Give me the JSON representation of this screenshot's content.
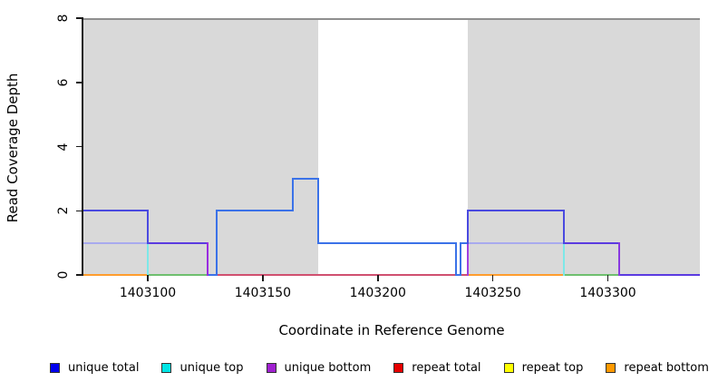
{
  "figure": {
    "xlabel": "Coordinate in Reference Genome",
    "ylabel": "Read Coverage Depth"
  },
  "chart_data": {
    "type": "line",
    "subtype": "step-coverage",
    "title": "",
    "xlabel": "Coordinate in Reference Genome",
    "ylabel": "Read Coverage Depth",
    "xlim": [
      1403072,
      1403340
    ],
    "ylim": [
      0,
      8
    ],
    "grid": false,
    "xticks": [
      1403100,
      1403150,
      1403200,
      1403250,
      1403300
    ],
    "xticklabels": [
      "1403100",
      "1403150",
      "1403200",
      "1403250",
      "1403300"
    ],
    "yticks": [
      0,
      2,
      4,
      6,
      8
    ],
    "yticklabels": [
      "0",
      "2",
      "4",
      "6",
      "8"
    ],
    "shade_color": "#d9d9d9",
    "shaded_regions": [
      {
        "x1": 1403072,
        "x2": 1403174
      },
      {
        "x1": 1403239,
        "x2": 1403340
      }
    ],
    "boundary_line_y": 8,
    "boundary_line_color": "#8f8f8f",
    "series": [
      {
        "name": "unique total",
        "color": "#0000ee",
        "steps": [
          [
            1403072,
            2
          ],
          [
            1403100,
            1
          ],
          [
            1403126,
            0
          ],
          [
            1403130,
            2
          ],
          [
            1403163,
            3
          ],
          [
            1403174,
            1
          ],
          [
            1403234,
            0
          ],
          [
            1403236,
            1
          ],
          [
            1403239,
            2
          ],
          [
            1403281,
            1
          ],
          [
            1403305,
            0
          ],
          [
            1403340,
            0
          ]
        ]
      },
      {
        "name": "unique top",
        "color": "#00e5e5",
        "steps": [
          [
            1403072,
            1
          ],
          [
            1403100,
            0
          ],
          [
            1403130,
            2
          ],
          [
            1403163,
            3
          ],
          [
            1403174,
            1
          ],
          [
            1403234,
            0
          ],
          [
            1403236,
            1
          ],
          [
            1403281,
            0
          ],
          [
            1403340,
            0
          ]
        ]
      },
      {
        "name": "unique bottom",
        "color": "#a020d0",
        "steps": [
          [
            1403072,
            1
          ],
          [
            1403126,
            0
          ],
          [
            1403239,
            1
          ],
          [
            1403305,
            0
          ],
          [
            1403340,
            0
          ]
        ]
      },
      {
        "name": "repeat total",
        "color": "#e60000",
        "steps": [
          [
            1403072,
            0
          ],
          [
            1403340,
            0
          ]
        ]
      },
      {
        "name": "repeat top",
        "color": "#ffff00",
        "steps": [
          [
            1403072,
            0
          ],
          [
            1403340,
            0
          ]
        ]
      },
      {
        "name": "repeat bottom",
        "color": "#ff9900",
        "steps": [
          [
            1403072,
            0
          ],
          [
            1403340,
            0
          ]
        ]
      }
    ],
    "render": {
      "segments": [
        [
          1403072,
          1403100,
          0,
          "#ff9d2e"
        ],
        [
          1403100,
          1403126,
          0,
          "#6fbf6f"
        ],
        [
          1403130,
          1403234,
          0,
          "#d05070"
        ],
        [
          1403236,
          1403239,
          0,
          "#d05070"
        ],
        [
          1403126,
          1403130,
          0,
          "#3b72e8"
        ],
        [
          1403234,
          1403236,
          0,
          "#3b72e8"
        ],
        [
          1403239,
          1403281,
          0,
          "#ff9d2e"
        ],
        [
          1403281,
          1403305,
          0,
          "#6fbf6f"
        ],
        [
          1403305,
          1403340,
          0,
          "#5b3be0"
        ],
        [
          1403072,
          1403100,
          1,
          "#a8aaee"
        ],
        [
          1403239,
          1403281,
          1,
          "#a8aaee"
        ],
        [
          1403100,
          1403126,
          1,
          "#5b3be0"
        ],
        [
          1403281,
          1403305,
          1,
          "#5b3be0"
        ],
        [
          1403174,
          1403234,
          1,
          "#3b72e8"
        ],
        [
          1403236,
          1403239,
          1,
          "#3b72e8"
        ],
        [
          1403072,
          1403100,
          2,
          "#4a4ae0"
        ],
        [
          1403239,
          1403281,
          2,
          "#4a4ae0"
        ],
        [
          1403130,
          1403163,
          2,
          "#3b72e8"
        ],
        [
          1403163,
          1403174,
          3,
          "#3b72e8"
        ]
      ],
      "verticals": [
        [
          1403100,
          0,
          1,
          "#7de8e8"
        ],
        [
          1403100,
          1,
          2,
          "#4a4ae0"
        ],
        [
          1403126,
          0,
          1,
          "#9a2ce0"
        ],
        [
          1403130,
          0,
          2,
          "#3b72e8"
        ],
        [
          1403163,
          2,
          3,
          "#3b72e8"
        ],
        [
          1403174,
          1,
          3,
          "#3b72e8"
        ],
        [
          1403234,
          0,
          1,
          "#3b72e8"
        ],
        [
          1403236,
          0,
          1,
          "#3b72e8"
        ],
        [
          1403239,
          0,
          1,
          "#a040e0"
        ],
        [
          1403239,
          1,
          2,
          "#4a4ae0"
        ],
        [
          1403281,
          0,
          1,
          "#7de8e8"
        ],
        [
          1403281,
          1,
          2,
          "#4a4ae0"
        ],
        [
          1403305,
          0,
          1,
          "#8839e0"
        ]
      ]
    },
    "legend_position": "bottom",
    "legend": [
      {
        "label": "unique total",
        "color": "#0000ee"
      },
      {
        "label": "unique top",
        "color": "#00e5e5"
      },
      {
        "label": "unique bottom",
        "color": "#a020d0"
      },
      {
        "label": "repeat total",
        "color": "#e60000"
      },
      {
        "label": "repeat top",
        "color": "#ffff00"
      },
      {
        "label": "repeat bottom",
        "color": "#ff9900"
      }
    ]
  }
}
